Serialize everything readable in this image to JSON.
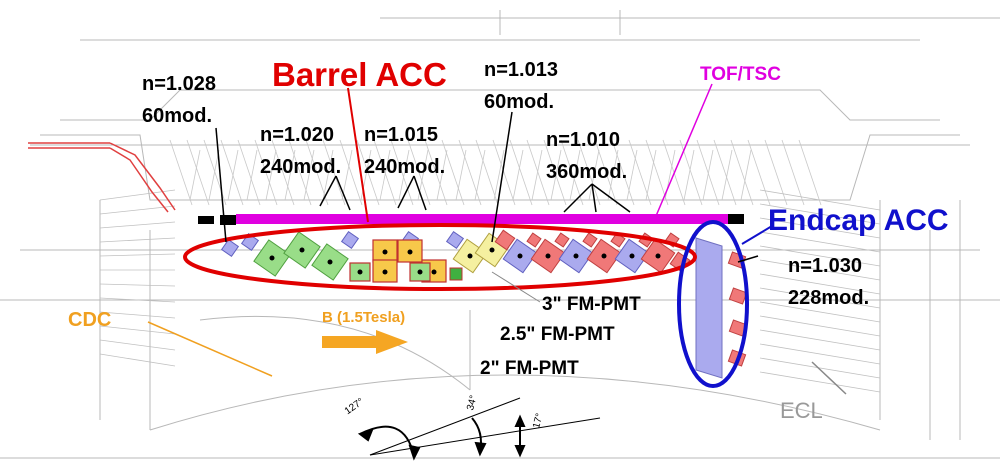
{
  "labels": {
    "barrel_acc": "Barrel ACC",
    "endcap_acc": "Endcap ACC",
    "tof_tsc": "TOF/TSC",
    "cdc": "CDC",
    "ecl": "ECL",
    "bfield": "B (1.5Tesla)",
    "pmt3": "3\" FM-PMT",
    "pmt25": "2.5\" FM-PMT",
    "pmt2": "2\" FM-PMT"
  },
  "modules": [
    {
      "n": "n=1.028",
      "mod": "60mod."
    },
    {
      "n": "n=1.020",
      "mod": "240mod."
    },
    {
      "n": "n=1.015",
      "mod": "240mod."
    },
    {
      "n": "n=1.013",
      "mod": "60mod."
    },
    {
      "n": "n=1.010",
      "mod": "360mod."
    },
    {
      "n": "n=1.030",
      "mod": "228mod."
    }
  ],
  "angles": [
    "127°",
    "34°",
    "17°"
  ],
  "colors": {
    "barrel": "#e00000",
    "endcap": "#1010cc",
    "tof": "#e000e0",
    "cdc": "#f0a020",
    "ecl": "#999999",
    "n1028": "#aaaaee",
    "n1020": "#99dd88",
    "n1015": "#f7c84a",
    "n1013": "#f5f0a0",
    "n1010": "#f07878",
    "n1030": "#f07878"
  }
}
